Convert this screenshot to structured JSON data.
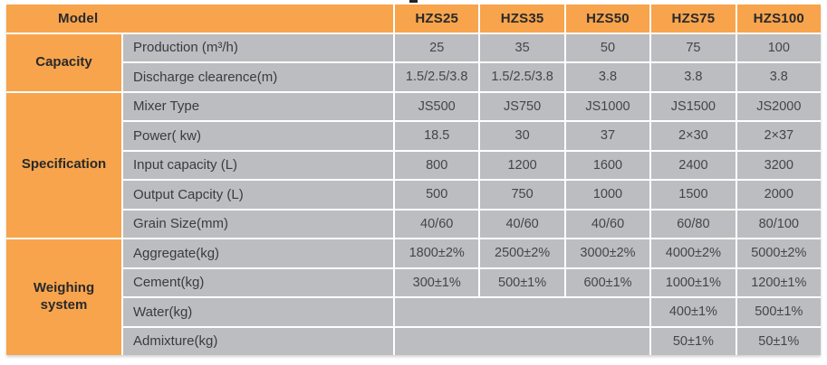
{
  "table": {
    "model_header": "Model",
    "columns": [
      "HZS25",
      "HZS35",
      "HZS50",
      "HZS75",
      "HZS100"
    ],
    "sections": [
      {
        "name": "Capacity",
        "rows": [
          {
            "label": "Production (m³/h)",
            "values": [
              "25",
              "35",
              "50",
              "75",
              "100"
            ]
          },
          {
            "label": "Discharge clearence(m)",
            "values": [
              "1.5/2.5/3.8",
              "1.5/2.5/3.8",
              "3.8",
              "3.8",
              "3.8"
            ]
          }
        ]
      },
      {
        "name": "Specification",
        "rows": [
          {
            "label": "Mixer Type",
            "values": [
              "JS500",
              "JS750",
              "JS1000",
              "JS1500",
              "JS2000"
            ]
          },
          {
            "label": "Power( kw)",
            "values": [
              "18.5",
              "30",
              "37",
              "2×30",
              "2×37"
            ]
          },
          {
            "label": "Input capacity (L)",
            "values": [
              "800",
              "1200",
              "1600",
              "2400",
              "3200"
            ]
          },
          {
            "label": "Output Capcity (L)",
            "values": [
              "500",
              "750",
              "1000",
              "1500",
              "2000"
            ]
          },
          {
            "label": "Grain Size(mm)",
            "values": [
              "40/60",
              "40/60",
              "40/60",
              "60/80",
              "80/100"
            ]
          }
        ]
      },
      {
        "name": "Weighing system",
        "rows": [
          {
            "label": "Aggregate(kg)",
            "values": [
              "1800±2%",
              "2500±2%",
              "3000±2%",
              "4000±2%",
              "5000±2%"
            ]
          },
          {
            "label": "Cement(kg)",
            "values": [
              "300±1%",
              "500±1%",
              "600±1%",
              "1000±1%",
              "1200±1%"
            ]
          },
          {
            "label": "Water(kg)",
            "values": [
              "",
              "",
              "",
              "400±1%",
              "500±1%"
            ],
            "merged_blank_cols": "HZS25–HZS50"
          },
          {
            "label": "Admixture(kg)",
            "values": [
              "",
              "",
              "",
              "50±1%",
              "50±1%"
            ],
            "merged_blank_cols": "HZS25–HZS50"
          }
        ]
      }
    ],
    "colors": {
      "header_orange": "#F7A44C",
      "cell_gray": "#BCBDC0",
      "separator_white": "#FFFFFF",
      "text_dark": "#29292b"
    }
  }
}
